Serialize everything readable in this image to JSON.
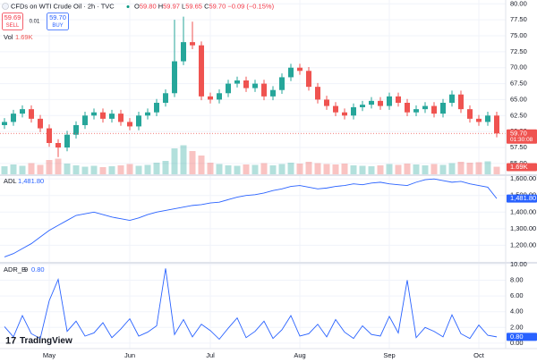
{
  "header": {
    "symbol": "CFDs on WTI Crude Oil · 2h · TVC",
    "ohlc": [
      {
        "key": "O",
        "value": "59.80"
      },
      {
        "key": "H",
        "value": "59.97"
      },
      {
        "key": "L",
        "value": "59.65"
      },
      {
        "key": "C",
        "value": "59.70"
      }
    ],
    "change": "−0.09 (−0.15%)",
    "sell_price": "59.69",
    "sell": "SELL",
    "spread": "0.01",
    "buy_price": "59.70",
    "buy": "BUY",
    "logo": "TradingView"
  },
  "x_axis": {
    "ticks": [
      {
        "value": 5,
        "label": "May"
      },
      {
        "value": 14,
        "label": "Jun"
      },
      {
        "value": 23,
        "label": "Jul"
      },
      {
        "value": 33,
        "label": "Aug"
      },
      {
        "value": 43,
        "label": "Sep"
      },
      {
        "value": 53,
        "label": "Oct"
      }
    ]
  },
  "chart_data": [
    {
      "type": "candlestick",
      "up_color": "#26a69a",
      "down_color": "#ef5350",
      "open": [
        61.0,
        61.5,
        62.8,
        63.5,
        62.0,
        60.5,
        58.2,
        57.5,
        59.5,
        61.0,
        62.5,
        63.0,
        62.0,
        62.8,
        61.5,
        60.8,
        62.5,
        63.0,
        64.5,
        66.0,
        71.0,
        74.0,
        73.5,
        65.5,
        65.0,
        66.0,
        67.5,
        68.0,
        66.8,
        67.5,
        65.5,
        66.5,
        68.5,
        70.0,
        69.5,
        67.0,
        65.0,
        64.0,
        63.0,
        62.5,
        63.8,
        64.2,
        64.8,
        64.0,
        65.5,
        64.5,
        63.0,
        63.5,
        64.0,
        62.8,
        64.5,
        65.8,
        63.5,
        62.0,
        61.5,
        62.5
      ],
      "high": [
        62.1,
        63.4,
        64.1,
        64.1,
        62.6,
        61.1,
        58.8,
        60.1,
        61.6,
        63.1,
        63.6,
        63.6,
        63.4,
        63.4,
        62.1,
        63.1,
        63.6,
        65.1,
        66.6,
        77.5,
        78.0,
        77.2,
        74.1,
        66.1,
        66.6,
        68.1,
        68.6,
        68.6,
        68.1,
        68.1,
        67.1,
        69.1,
        70.6,
        70.6,
        70.1,
        67.6,
        65.6,
        64.6,
        63.6,
        64.4,
        64.8,
        65.4,
        65.4,
        66.1,
        66.1,
        65.1,
        64.1,
        64.6,
        64.6,
        65.1,
        66.4,
        66.4,
        64.1,
        62.6,
        63.1,
        63.1
      ],
      "low": [
        60.4,
        60.9,
        62.2,
        61.4,
        59.9,
        57.6,
        56.0,
        56.9,
        58.9,
        60.4,
        61.9,
        61.4,
        61.4,
        60.9,
        60.2,
        60.2,
        61.9,
        62.4,
        63.9,
        65.4,
        70.4,
        72.9,
        64.9,
        64.4,
        64.4,
        65.4,
        66.9,
        66.2,
        66.2,
        64.9,
        64.9,
        65.9,
        67.9,
        68.9,
        66.4,
        64.4,
        63.4,
        62.4,
        61.9,
        61.9,
        63.2,
        63.6,
        63.4,
        63.4,
        63.9,
        62.4,
        62.4,
        62.9,
        62.2,
        62.2,
        63.9,
        62.9,
        61.4,
        60.9,
        60.9,
        59.1
      ],
      "close": [
        61.5,
        62.8,
        63.5,
        62.0,
        60.5,
        58.2,
        57.5,
        59.5,
        61.0,
        62.5,
        63.0,
        62.0,
        62.8,
        61.5,
        60.8,
        62.5,
        63.0,
        64.5,
        66.0,
        71.0,
        74.0,
        73.5,
        65.5,
        65.0,
        66.0,
        67.5,
        68.0,
        66.8,
        67.5,
        65.5,
        66.5,
        68.5,
        70.0,
        69.5,
        67.0,
        65.0,
        64.0,
        63.0,
        62.5,
        63.8,
        64.2,
        64.8,
        64.0,
        65.5,
        64.5,
        63.0,
        63.5,
        64.0,
        62.8,
        64.5,
        65.8,
        63.5,
        62.0,
        61.5,
        62.5,
        59.7
      ],
      "last_label": "59.70",
      "countdown": "01:30:08",
      "ylim": [
        53.3,
        80.6
      ],
      "yticks": [
        {
          "value": 55,
          "label": "55.00"
        },
        {
          "value": 57.5,
          "label": "57.50"
        },
        {
          "value": 60,
          "label": "60.00"
        },
        {
          "value": 62.5,
          "label": "62.50"
        },
        {
          "value": 65,
          "label": "65.00"
        },
        {
          "value": 67.5,
          "label": "67.50"
        },
        {
          "value": 70,
          "label": "70.00"
        },
        {
          "value": 72.5,
          "label": "72.50"
        },
        {
          "value": 75,
          "label": "75.00"
        },
        {
          "value": 77.5,
          "label": "77.50"
        },
        {
          "value": 80,
          "label": "80.00"
        }
      ],
      "volume_name": "Vol",
      "volume": [
        1800,
        2200,
        1900,
        2500,
        2100,
        3200,
        3500,
        2400,
        2000,
        1700,
        1900,
        1600,
        1800,
        2000,
        2300,
        1900,
        2100,
        2600,
        3000,
        5800,
        6500,
        5200,
        4200,
        2600,
        2300,
        2000,
        1900,
        2200,
        2100,
        2500,
        2000,
        2300,
        2600,
        2400,
        2800,
        2500,
        2300,
        2200,
        2400,
        2000,
        1900,
        1800,
        2000,
        2300,
        2100,
        2400,
        2200,
        2000,
        2300,
        2100,
        2500,
        2800,
        2600,
        2700,
        2900,
        1690
      ],
      "volume_label": "1.69K",
      "volume_ylim": [
        0,
        8000
      ],
      "grid": true
    },
    {
      "type": "line",
      "name": "ADL",
      "color": "#2962ff",
      "values": [
        1130,
        1150,
        1180,
        1210,
        1250,
        1290,
        1320,
        1350,
        1380,
        1390,
        1400,
        1385,
        1370,
        1360,
        1350,
        1365,
        1385,
        1400,
        1410,
        1420,
        1430,
        1440,
        1445,
        1455,
        1460,
        1475,
        1490,
        1500,
        1505,
        1515,
        1530,
        1540,
        1555,
        1560,
        1550,
        1540,
        1545,
        1555,
        1560,
        1570,
        1565,
        1575,
        1580,
        1570,
        1565,
        1560,
        1580,
        1595,
        1600,
        1590,
        1580,
        1585,
        1570,
        1560,
        1550,
        1481.8
      ],
      "value_label": "1,481.80",
      "ylim": [
        1100,
        1617
      ],
      "yticks": [
        {
          "value": 1200,
          "label": "1,200.00"
        },
        {
          "value": 1300,
          "label": "1,300.00"
        },
        {
          "value": 1400,
          "label": "1,400.00"
        },
        {
          "value": 1500,
          "label": "1,500.00"
        },
        {
          "value": 1600,
          "label": "1,600.00"
        }
      ],
      "grid": true
    },
    {
      "type": "line",
      "name": "ADR_B",
      "param": "9",
      "color": "#2962ff",
      "values": [
        2.1,
        0.8,
        3.5,
        1.2,
        0.6,
        5.4,
        8.1,
        1.5,
        2.8,
        0.9,
        1.3,
        2.6,
        0.7,
        1.8,
        3.1,
        0.9,
        1.4,
        2.2,
        9.5,
        1.1,
        3.0,
        0.8,
        2.4,
        1.6,
        0.5,
        1.9,
        3.2,
        0.7,
        1.5,
        2.8,
        0.6,
        1.7,
        3.5,
        0.9,
        1.2,
        2.4,
        0.8,
        3.0,
        1.4,
        0.6,
        2.2,
        1.1,
        0.9,
        3.4,
        1.3,
        8.0,
        0.7,
        2.0,
        1.5,
        0.8,
        3.6,
        1.2,
        0.6,
        2.3,
        1.0,
        0.8
      ],
      "value_label": "0.80",
      "ylim": [
        -0.35,
        10.1
      ],
      "yticks": [
        {
          "value": 0,
          "label": "0.00"
        },
        {
          "value": 2,
          "label": "2.00"
        },
        {
          "value": 4,
          "label": "4.00"
        },
        {
          "value": 6,
          "label": "6.00"
        },
        {
          "value": 8,
          "label": "8.00"
        },
        {
          "value": 10,
          "label": "10.00"
        }
      ],
      "grid": true
    }
  ]
}
